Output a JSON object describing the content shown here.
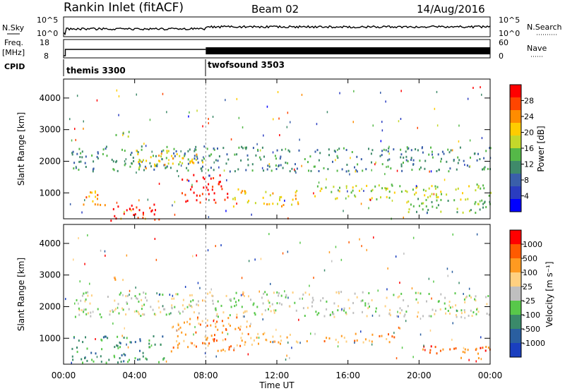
{
  "header": {
    "station": "Rankin Inlet (fitACF)",
    "beam": "Beam 02",
    "date": "14/Aug/2016"
  },
  "sky": {
    "left_label": "N.Sky",
    "right_label": "N.Search",
    "left_ticks": [
      "10^5",
      "10^0"
    ],
    "right_ticks": [
      "10^5",
      "10^0"
    ]
  },
  "freq": {
    "left_label_1": "Freq.",
    "left_label_2": "[MHz]",
    "left_ticks": [
      "18",
      "8"
    ],
    "right_label": "Nave",
    "right_ticks": [
      "60",
      "0"
    ]
  },
  "cpid": {
    "label": "CPID",
    "modes": [
      {
        "name": "themis 3300",
        "start": 0
      },
      {
        "name": "twofsound 3503",
        "start": 8
      }
    ]
  },
  "x_axis": {
    "label": "Time UT",
    "ticks": [
      "00:00",
      "04:00",
      "08:00",
      "12:00",
      "16:00",
      "20:00",
      "00:00"
    ]
  },
  "chart_data": [
    {
      "type": "heatmap",
      "ylabel": "Slant Range [km]",
      "y_ticks": [
        1000,
        2000,
        3000,
        4000
      ],
      "ylim": [
        180,
        4600
      ],
      "xlim": [
        0,
        24
      ],
      "colorbar": {
        "label": "Power [dB]",
        "ticks": [
          "4",
          "8",
          "12",
          "16",
          "20",
          "24",
          "28"
        ],
        "colors": [
          "#0000ff",
          "#2a3cc0",
          "#3a5faa",
          "#3f8a6a",
          "#55b848",
          "#c4d82a",
          "#ffcc00",
          "#ff8c00",
          "#ff4500",
          "#ff0000"
        ]
      },
      "regions": [
        {
          "t0": 0.8,
          "t1": 2.4,
          "r0": 600,
          "r1": 1150,
          "class": 7
        },
        {
          "t0": 2.6,
          "t1": 5.6,
          "r0": 150,
          "r1": 700,
          "class": 9
        },
        {
          "t0": 6.6,
          "t1": 9.2,
          "r0": 700,
          "r1": 1650,
          "class": 9
        },
        {
          "t0": 9.2,
          "t1": 13.2,
          "r0": 600,
          "r1": 1150,
          "class": 6
        },
        {
          "t0": 0.4,
          "t1": 24,
          "r0": 1700,
          "r1": 2500,
          "class": 3
        },
        {
          "t0": 2.8,
          "t1": 3.8,
          "r0": 2800,
          "r1": 3100,
          "class": 4
        },
        {
          "t0": 4.0,
          "t1": 8.0,
          "r0": 1800,
          "r1": 2400,
          "class": 6
        },
        {
          "t0": 14.0,
          "t1": 24,
          "r0": 800,
          "r1": 1300,
          "class": 5
        },
        {
          "t0": 19.0,
          "t1": 24,
          "r0": 400,
          "r1": 900,
          "class": 4
        }
      ]
    },
    {
      "type": "heatmap",
      "ylabel": "Slant Range [km]",
      "y_ticks": [
        1000,
        2000,
        3000,
        4000
      ],
      "ylim": [
        180,
        4600
      ],
      "xlim": [
        0,
        24
      ],
      "colorbar": {
        "label": "Velocity [m s⁻¹]",
        "ticks": [
          "1000",
          "500",
          "100",
          "25",
          "-25",
          "-100",
          "-500",
          "-1000"
        ],
        "colors": [
          "#1a3fbf",
          "#2a5fa0",
          "#3a8a6a",
          "#58c84a",
          "#bfbfbf",
          "#ffd080",
          "#ff9a20",
          "#ff5a00",
          "#ff0000"
        ]
      },
      "regions": [
        {
          "t0": 0.4,
          "t1": 24,
          "r0": 1700,
          "r1": 2500,
          "class": 4
        },
        {
          "t0": 0.4,
          "t1": 5.8,
          "r0": 250,
          "r1": 1100,
          "class": 2
        },
        {
          "t0": 6.0,
          "t1": 10.5,
          "r0": 600,
          "r1": 1700,
          "class": 6
        },
        {
          "t0": 10.5,
          "t1": 14.0,
          "r0": 800,
          "r1": 1200,
          "class": 6
        },
        {
          "t0": 14.5,
          "t1": 19.0,
          "r0": 900,
          "r1": 1200,
          "class": 6
        },
        {
          "t0": 20.0,
          "t1": 24,
          "r0": 400,
          "r1": 800,
          "class": 7
        },
        {
          "t0": 2.8,
          "t1": 3.8,
          "r0": 2800,
          "r1": 3100,
          "class": 6
        }
      ]
    }
  ]
}
